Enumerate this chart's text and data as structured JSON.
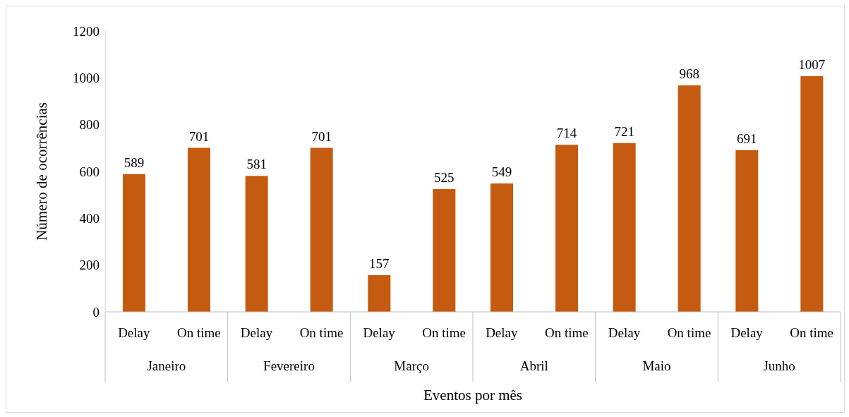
{
  "chart_data": {
    "type": "bar",
    "xlabel": "Eventos por mês",
    "ylabel": "Número de ocorrências",
    "categories": [
      "Janeiro",
      "Fevereiro",
      "Março",
      "Abril",
      "Maio",
      "Junho"
    ],
    "series": [
      {
        "name": "Delay",
        "color": "#c55a11",
        "values": [
          589,
          581,
          157,
          549,
          721,
          691
        ]
      },
      {
        "name": "On time",
        "color": "#c55a11",
        "values": [
          701,
          701,
          525,
          714,
          968,
          1007
        ]
      }
    ],
    "ylim": [
      0,
      1200
    ],
    "yticks": [
      0,
      200,
      400,
      600,
      800,
      1000,
      1200
    ],
    "grid": false,
    "legend": false,
    "data_labels": true
  }
}
